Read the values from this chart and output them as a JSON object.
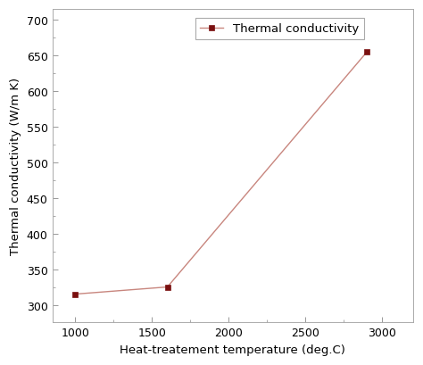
{
  "x": [
    1000,
    1600,
    2900
  ],
  "y": [
    315,
    325,
    655
  ],
  "line_color": "#c8867e",
  "marker_color": "#7a1010",
  "marker": "s",
  "marker_size": 5,
  "line_width": 1.0,
  "xlabel": "Heat-treatement temperature (deg.C)",
  "ylabel": "Thermal conductivity (W/m K)",
  "legend_label": "Thermal conductivity",
  "xlim": [
    850,
    3200
  ],
  "ylim": [
    275,
    715
  ],
  "xticks": [
    1000,
    1500,
    2000,
    2500,
    3000
  ],
  "yticks": [
    300,
    350,
    400,
    450,
    500,
    550,
    600,
    650,
    700
  ],
  "background_color": "#ffffff",
  "axis_fontsize": 9.5,
  "tick_fontsize": 9,
  "legend_fontsize": 9.5
}
